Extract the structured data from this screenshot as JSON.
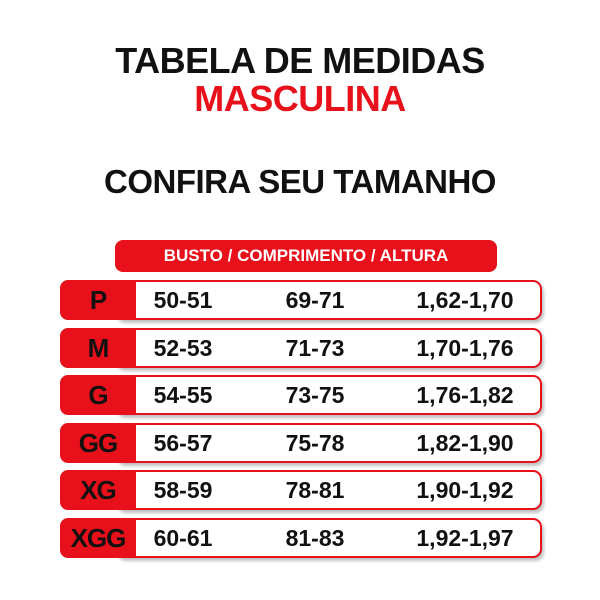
{
  "header": {
    "title": "TABELA DE MEDIDAS",
    "subtitle": "MASCULINA",
    "heading": "CONFIRA SEU TAMANHO"
  },
  "table": {
    "columns_label": "BUSTO / COMPRIMENTO / ALTURA",
    "rows": [
      [
        "P",
        "50-51",
        "69-71",
        "1,62-1,70"
      ],
      [
        "M",
        "52-53",
        "71-73",
        "1,70-1,76"
      ],
      [
        "G",
        "54-55",
        "73-75",
        "1,76-1,82"
      ],
      [
        "GG",
        "56-57",
        "75-78",
        "1,82-1,90"
      ],
      [
        "XG",
        "58-59",
        "78-81",
        "1,90-1,92"
      ],
      [
        "XGG",
        "60-61",
        "81-83",
        "1,92-1,97"
      ]
    ]
  }
}
